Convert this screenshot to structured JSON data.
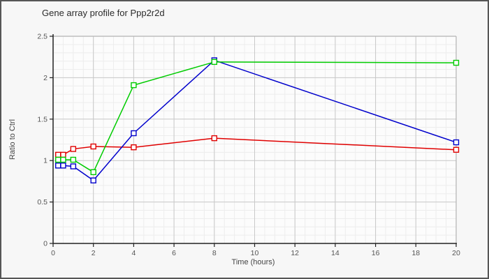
{
  "window": {
    "bg": "#f7f7f7",
    "border_color": "#565656"
  },
  "chart_data": {
    "type": "line",
    "title": "Gene array profile for Ppp2r2d",
    "xlabel": "Time (hours)",
    "ylabel": "Ratio to Ctrl",
    "x": [
      0.25,
      0.5,
      1,
      2,
      4,
      8,
      20
    ],
    "series": [
      {
        "name": "red-series",
        "color": "#e00000",
        "values": [
          1.07,
          1.07,
          1.14,
          1.17,
          1.16,
          1.27,
          1.13
        ]
      },
      {
        "name": "blue-series",
        "color": "#0000cc",
        "values": [
          0.94,
          0.94,
          0.93,
          0.76,
          1.33,
          2.21,
          1.22
        ]
      },
      {
        "name": "green-series",
        "color": "#00cc00",
        "values": [
          1.01,
          1.01,
          1.01,
          0.86,
          1.91,
          2.19,
          2.18
        ]
      }
    ],
    "xlim": [
      0,
      20
    ],
    "ylim": [
      0,
      2.5
    ],
    "x_ticks": {
      "values": [
        0,
        2,
        4,
        6,
        8,
        10,
        12,
        14,
        16,
        18,
        20
      ],
      "labels": [
        "0",
        "2",
        "4",
        "6",
        "8",
        "10",
        "12",
        "14",
        "16",
        "18",
        "20"
      ]
    },
    "y_ticks": {
      "values": [
        0,
        0.5,
        1,
        1.5,
        2,
        2.5
      ],
      "labels": [
        "0",
        "0.5",
        "1",
        "1.5",
        "2",
        "2.5"
      ]
    },
    "x_minor_step": 0.5,
    "y_minor_step": 0.1,
    "grid": true,
    "legend": "none",
    "marker": "open-square",
    "style": {
      "plot_bg": "#fcfcfc",
      "grid_major": "#c9c9c9",
      "grid_minor": "#ededed",
      "frame": "#b3b3b3",
      "axis": "#222222",
      "tick_text": "#555555",
      "title_color": "#2b2b2b",
      "label_color": "#444444"
    }
  }
}
